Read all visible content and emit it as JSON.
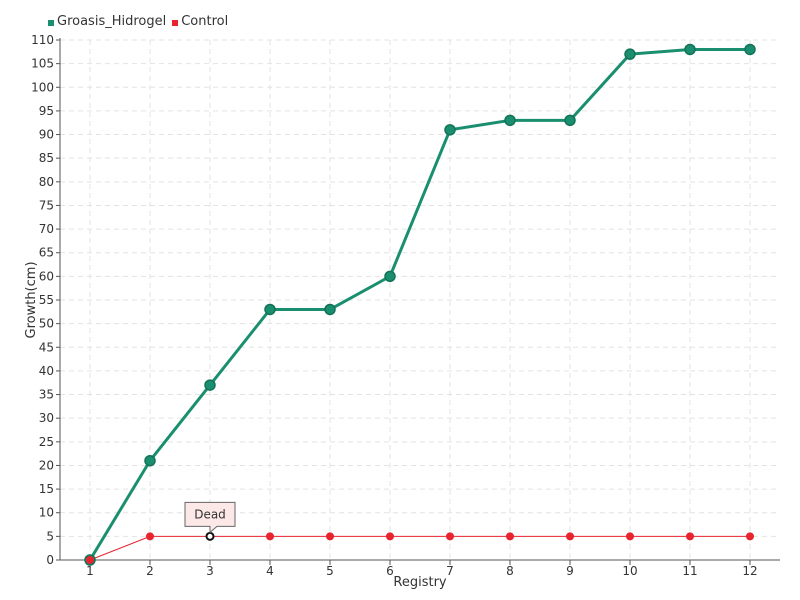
{
  "chart_data": {
    "type": "line",
    "xlabel": "Registry",
    "ylabel": "Growth(cm)",
    "categories": [
      "1",
      "2",
      "3",
      "4",
      "5",
      "6",
      "7",
      "8",
      "9",
      "10",
      "11",
      "12"
    ],
    "ylim": [
      0,
      110
    ],
    "ytick_step": 5,
    "grid": true,
    "legend_position": "top-left",
    "series": [
      {
        "name": "Groasis_Hidrogel",
        "color": "#1a8f6f",
        "values": [
          0,
          21,
          37,
          53,
          53,
          60,
          91,
          93,
          93,
          107,
          108,
          108
        ]
      },
      {
        "name": "Control",
        "color": "#e8242f",
        "values": [
          0,
          5,
          5,
          5,
          5,
          5,
          5,
          5,
          5,
          5,
          5,
          5
        ]
      }
    ],
    "annotations": [
      {
        "text": "Dead",
        "series": "Control",
        "category": "3",
        "value": 5
      }
    ]
  }
}
